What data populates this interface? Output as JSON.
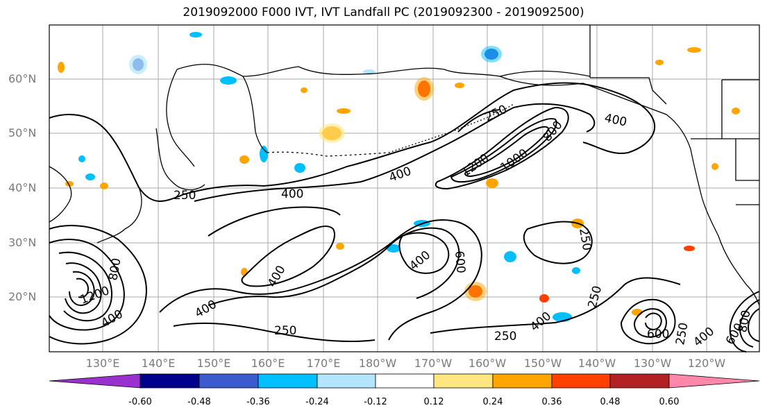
{
  "title": "2019092000 F000 IVT, IVT Landfall PC (2019092300 - 2019092500)",
  "lat_labels": [
    "60°N",
    "50°N",
    "40°N",
    "30°N",
    "20°N"
  ],
  "lon_labels": [
    "130°E",
    "140°E",
    "150°E",
    "160°E",
    "170°E",
    "180°W",
    "170°W",
    "160°W",
    "150°W",
    "140°W",
    "130°W",
    "120°W"
  ],
  "contour_labels": [
    "250",
    "400",
    "600",
    "800",
    "1000",
    "1200"
  ],
  "colorbar": {
    "tick_labels": [
      "-0.60",
      "-0.48",
      "-0.36",
      "-0.24",
      "-0.12",
      "0.12",
      "0.24",
      "0.36",
      "0.48",
      "0.60"
    ],
    "colors": [
      "#9932cc",
      "#00008b",
      "#3a5ccc",
      "#00bfff",
      "#b3e5fc",
      "#ffffff",
      "#ffe680",
      "#ffa500",
      "#ff4000",
      "#b22222",
      "#ff88aa"
    ]
  },
  "colors": {
    "grid": "#aaaaaa",
    "coast": "#000000",
    "contour": "#000000"
  }
}
